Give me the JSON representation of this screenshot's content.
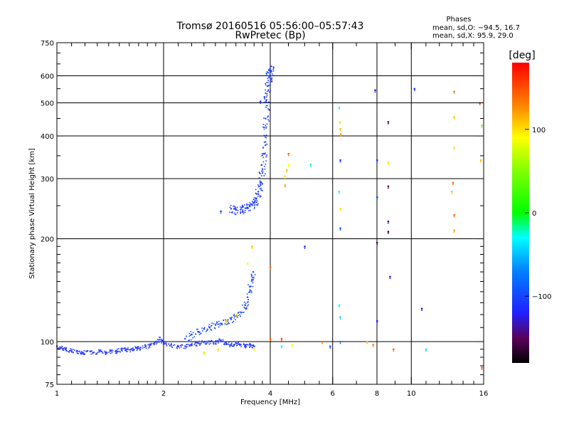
{
  "chart_data": {
    "type": "scatter",
    "title": "Tromsø 20160516 05:56:00–05:57:43",
    "subtitle": "RwPretec (Bp)",
    "phase_stats": {
      "heading": "Phases",
      "line_o": "mean, sd,O: −94.5, 16.7",
      "line_x": "mean, sd,X:  95.9, 29.0"
    },
    "xlabel": "Frequency [MHz]",
    "ylabel": "Stationary phase Virtual Height [km]",
    "x_scale": "log",
    "y_scale": "log",
    "xlim": [
      1,
      16
    ],
    "ylim": [
      75,
      750
    ],
    "x_ticks": [
      {
        "value": 1,
        "label": "1"
      },
      {
        "value": 2,
        "label": "2"
      },
      {
        "value": 4,
        "label": "4"
      },
      {
        "value": 6,
        "label": "6"
      },
      {
        "value": 8,
        "label": "8"
      },
      {
        "value": 10,
        "label": "10"
      },
      {
        "value": 16,
        "label": "16"
      }
    ],
    "x_minor_ticks": [
      1.1,
      1.2,
      1.3,
      1.4,
      1.5,
      1.6,
      1.7,
      1.8,
      1.9,
      2.2,
      2.4,
      2.6,
      2.8,
      3,
      3.2,
      3.4,
      3.6,
      3.8,
      4.5,
      5,
      5.5,
      7,
      9,
      11,
      12,
      13,
      14,
      15
    ],
    "y_ticks": [
      {
        "value": 75,
        "label": "75"
      },
      {
        "value": 100,
        "label": "100"
      },
      {
        "value": 200,
        "label": "200"
      },
      {
        "value": 300,
        "label": "300"
      },
      {
        "value": 400,
        "label": "400"
      },
      {
        "value": 500,
        "label": "500"
      },
      {
        "value": 600,
        "label": "600"
      },
      {
        "value": 750,
        "label": "750"
      }
    ],
    "y_minor_ticks": [
      80,
      85,
      90,
      95,
      110,
      120,
      130,
      140,
      150,
      160,
      170,
      180,
      190,
      250,
      350,
      450,
      550,
      650,
      700
    ],
    "grid_x": [
      2,
      4,
      6,
      8,
      10
    ],
    "grid_y": [
      100,
      200,
      300,
      400,
      500,
      600
    ],
    "colorbar": {
      "label": "[deg]",
      "range": [
        -180,
        180
      ],
      "ticks": [
        {
          "value": 100,
          "label": "100"
        },
        {
          "value": 0,
          "label": "0"
        },
        {
          "value": -100,
          "label": "−100"
        }
      ],
      "stops": [
        {
          "value": -180,
          "color": "#000000"
        },
        {
          "value": -150,
          "color": "#5a005a"
        },
        {
          "value": -120,
          "color": "#2020ff"
        },
        {
          "value": -70,
          "color": "#0080ff"
        },
        {
          "value": -30,
          "color": "#00ffff"
        },
        {
          "value": 0,
          "color": "#00ff00"
        },
        {
          "value": 50,
          "color": "#80ff00"
        },
        {
          "value": 90,
          "color": "#ffff00"
        },
        {
          "value": 130,
          "color": "#ff8000"
        },
        {
          "value": 180,
          "color": "#ff0000"
        }
      ]
    },
    "trace_o_e_layer": {
      "color": "#2a3cff",
      "points": [
        [
          1.0,
          97
        ],
        [
          1.03,
          96
        ],
        [
          1.06,
          95
        ],
        [
          1.1,
          94
        ],
        [
          1.14,
          94
        ],
        [
          1.18,
          93
        ],
        [
          1.22,
          94
        ],
        [
          1.27,
          93
        ],
        [
          1.32,
          94
        ],
        [
          1.37,
          93
        ],
        [
          1.42,
          94
        ],
        [
          1.47,
          94
        ],
        [
          1.52,
          95
        ],
        [
          1.57,
          95
        ],
        [
          1.62,
          95
        ],
        [
          1.67,
          96
        ],
        [
          1.72,
          96
        ],
        [
          1.78,
          97
        ],
        [
          1.84,
          98
        ],
        [
          1.9,
          100
        ],
        [
          1.95,
          103
        ],
        [
          2.0,
          99
        ],
        [
          2.1,
          98
        ],
        [
          2.2,
          97
        ],
        [
          2.3,
          97
        ],
        [
          2.4,
          98
        ],
        [
          2.5,
          99
        ],
        [
          2.6,
          100
        ],
        [
          2.7,
          100
        ],
        [
          2.8,
          100
        ],
        [
          2.9,
          101
        ],
        [
          3.0,
          99
        ],
        [
          3.1,
          98
        ],
        [
          3.2,
          99
        ],
        [
          3.3,
          98
        ],
        [
          3.4,
          97
        ],
        [
          3.5,
          98
        ],
        [
          3.6,
          97
        ]
      ]
    },
    "trace_o_es_upper": {
      "color": "#1c4bff",
      "points": [
        [
          2.3,
          102
        ],
        [
          2.4,
          105
        ],
        [
          2.5,
          107
        ],
        [
          2.6,
          109
        ],
        [
          2.7,
          110
        ],
        [
          2.8,
          112
        ],
        [
          2.9,
          113
        ],
        [
          3.0,
          115
        ],
        [
          3.1,
          117
        ],
        [
          3.2,
          119
        ],
        [
          3.3,
          122
        ],
        [
          3.4,
          128
        ],
        [
          3.45,
          135
        ],
        [
          3.5,
          145
        ],
        [
          3.55,
          152
        ],
        [
          3.58,
          160
        ]
      ]
    },
    "trace_o_f_layer": {
      "color": "#1f3dff",
      "points": [
        [
          3.1,
          245
        ],
        [
          3.2,
          243
        ],
        [
          3.3,
          244
        ],
        [
          3.4,
          246
        ],
        [
          3.5,
          249
        ],
        [
          3.6,
          255
        ],
        [
          3.65,
          263
        ],
        [
          3.7,
          275
        ],
        [
          3.75,
          292
        ],
        [
          3.8,
          320
        ],
        [
          3.83,
          355
        ],
        [
          3.86,
          400
        ],
        [
          3.88,
          450
        ],
        [
          3.9,
          510
        ],
        [
          3.93,
          560
        ],
        [
          3.97,
          600
        ],
        [
          4.0,
          620
        ],
        [
          4.02,
          640
        ]
      ]
    },
    "scatter_points": [
      {
        "f": 2.9,
        "h": 241,
        "phase": -100
      },
      {
        "f": 6.25,
        "h": 485,
        "phase": -30
      },
      {
        "f": 6.28,
        "h": 440,
        "phase": 100
      },
      {
        "f": 6.3,
        "h": 420,
        "phase": 110
      },
      {
        "f": 6.32,
        "h": 405,
        "phase": 120
      },
      {
        "f": 6.3,
        "h": 340,
        "phase": -110
      },
      {
        "f": 6.25,
        "h": 275,
        "phase": -30
      },
      {
        "f": 6.3,
        "h": 245,
        "phase": 100
      },
      {
        "f": 6.3,
        "h": 215,
        "phase": -90
      },
      {
        "f": 6.25,
        "h": 128,
        "phase": -30
      },
      {
        "f": 6.3,
        "h": 118,
        "phase": -40
      },
      {
        "f": 6.3,
        "h": 100,
        "phase": -70
      },
      {
        "f": 7.9,
        "h": 545,
        "phase": -120
      },
      {
        "f": 8.0,
        "h": 340,
        "phase": -110
      },
      {
        "f": 8.0,
        "h": 265,
        "phase": -100
      },
      {
        "f": 8.0,
        "h": 195,
        "phase": -150
      },
      {
        "f": 8.0,
        "h": 115,
        "phase": -120
      },
      {
        "f": 8.6,
        "h": 440,
        "phase": -150
      },
      {
        "f": 8.6,
        "h": 335,
        "phase": 100
      },
      {
        "f": 8.6,
        "h": 285,
        "phase": -150
      },
      {
        "f": 8.6,
        "h": 225,
        "phase": -140
      },
      {
        "f": 8.6,
        "h": 210,
        "phase": -160
      },
      {
        "f": 8.7,
        "h": 155,
        "phase": -120
      },
      {
        "f": 10.2,
        "h": 550,
        "phase": -110
      },
      {
        "f": 10.7,
        "h": 125,
        "phase": -130
      },
      {
        "f": 13.2,
        "h": 540,
        "phase": 130
      },
      {
        "f": 13.2,
        "h": 455,
        "phase": 110
      },
      {
        "f": 13.2,
        "h": 370,
        "phase": 100
      },
      {
        "f": 13.1,
        "h": 292,
        "phase": 140
      },
      {
        "f": 13.0,
        "h": 275,
        "phase": 110
      },
      {
        "f": 13.2,
        "h": 235,
        "phase": 140
      },
      {
        "f": 13.2,
        "h": 212,
        "phase": 120
      },
      {
        "f": 15.6,
        "h": 500,
        "phase": 150
      },
      {
        "f": 15.8,
        "h": 430,
        "phase": 40
      },
      {
        "f": 15.7,
        "h": 340,
        "phase": 110
      },
      {
        "f": 15.8,
        "h": 84,
        "phase": 150
      },
      {
        "f": 4.5,
        "h": 355,
        "phase": 140
      },
      {
        "f": 4.5,
        "h": 330,
        "phase": 90
      },
      {
        "f": 4.45,
        "h": 318,
        "phase": 110
      },
      {
        "f": 4.4,
        "h": 305,
        "phase": 100
      },
      {
        "f": 4.4,
        "h": 287,
        "phase": 120
      },
      {
        "f": 5.0,
        "h": 190,
        "phase": -120
      },
      {
        "f": 5.2,
        "h": 330,
        "phase": -20
      },
      {
        "f": 4.0,
        "h": 165,
        "phase": 140
      },
      {
        "f": 4.0,
        "h": 102,
        "phase": 140
      },
      {
        "f": 4.3,
        "h": 102,
        "phase": 150
      },
      {
        "f": 4.3,
        "h": 97,
        "phase": -30
      },
      {
        "f": 4.6,
        "h": 98,
        "phase": 90
      },
      {
        "f": 5.6,
        "h": 100,
        "phase": 140
      },
      {
        "f": 5.9,
        "h": 97,
        "phase": -90
      },
      {
        "f": 7.5,
        "h": 100,
        "phase": 110
      },
      {
        "f": 7.8,
        "h": 98,
        "phase": 130
      },
      {
        "f": 8.9,
        "h": 95,
        "phase": 140
      },
      {
        "f": 11.0,
        "h": 95,
        "phase": -40
      },
      {
        "f": 3.55,
        "h": 190,
        "phase": 110
      },
      {
        "f": 3.45,
        "h": 170,
        "phase": 90
      },
      {
        "f": 3.2,
        "h": 120,
        "phase": 100
      },
      {
        "f": 3.0,
        "h": 115,
        "phase": 110
      },
      {
        "f": 2.85,
        "h": 95,
        "phase": 100
      },
      {
        "f": 2.6,
        "h": 93,
        "phase": 100
      },
      {
        "f": 3.6,
        "h": 95,
        "phase": 90
      },
      {
        "f": 3.9,
        "h": 610,
        "phase": -80
      },
      {
        "f": 3.85,
        "h": 520,
        "phase": -110
      },
      {
        "f": 3.75,
        "h": 505,
        "phase": -120
      }
    ]
  }
}
